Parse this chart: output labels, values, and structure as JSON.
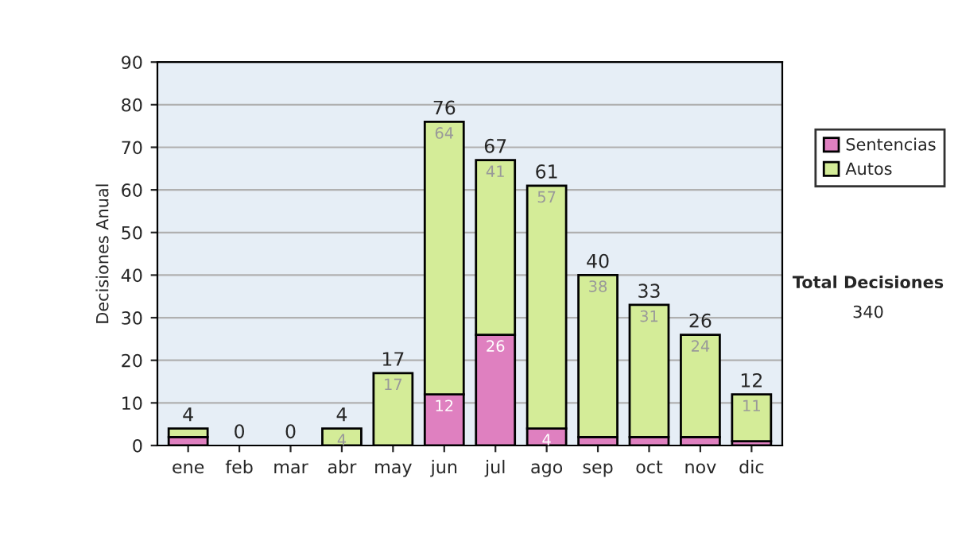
{
  "chart_data": {
    "type": "bar",
    "stacked": true,
    "ylabel": "Decisiones Anual",
    "categories": [
      "ene",
      "feb",
      "mar",
      "abr",
      "may",
      "jun",
      "jul",
      "ago",
      "sep",
      "oct",
      "nov",
      "dic"
    ],
    "series": [
      {
        "name": "Sentencias",
        "color": "#df80c0",
        "values": [
          2,
          0,
          0,
          0,
          0,
          12,
          26,
          4,
          2,
          2,
          2,
          1
        ],
        "value_labels": [
          null,
          null,
          null,
          null,
          null,
          "12",
          "26",
          "4",
          null,
          null,
          null,
          null
        ]
      },
      {
        "name": "Autos",
        "color": "#d4ec98",
        "values": [
          2,
          0,
          0,
          4,
          17,
          64,
          41,
          57,
          38,
          31,
          24,
          11
        ],
        "value_labels": [
          null,
          null,
          null,
          "4",
          "17",
          "64",
          "41",
          "57",
          "38",
          "31",
          "24",
          "11"
        ]
      }
    ],
    "totals": [
      "4",
      "0",
      "0",
      "4",
      "17",
      "76",
      "67",
      "61",
      "40",
      "33",
      "26",
      "12"
    ],
    "ylim": [
      0,
      90
    ],
    "yticks": [
      0,
      10,
      20,
      30,
      40,
      50,
      60,
      70,
      80,
      90
    ],
    "grid": "y",
    "legend": "right",
    "annotations": [
      "Total Decisiones",
      "340"
    ]
  }
}
